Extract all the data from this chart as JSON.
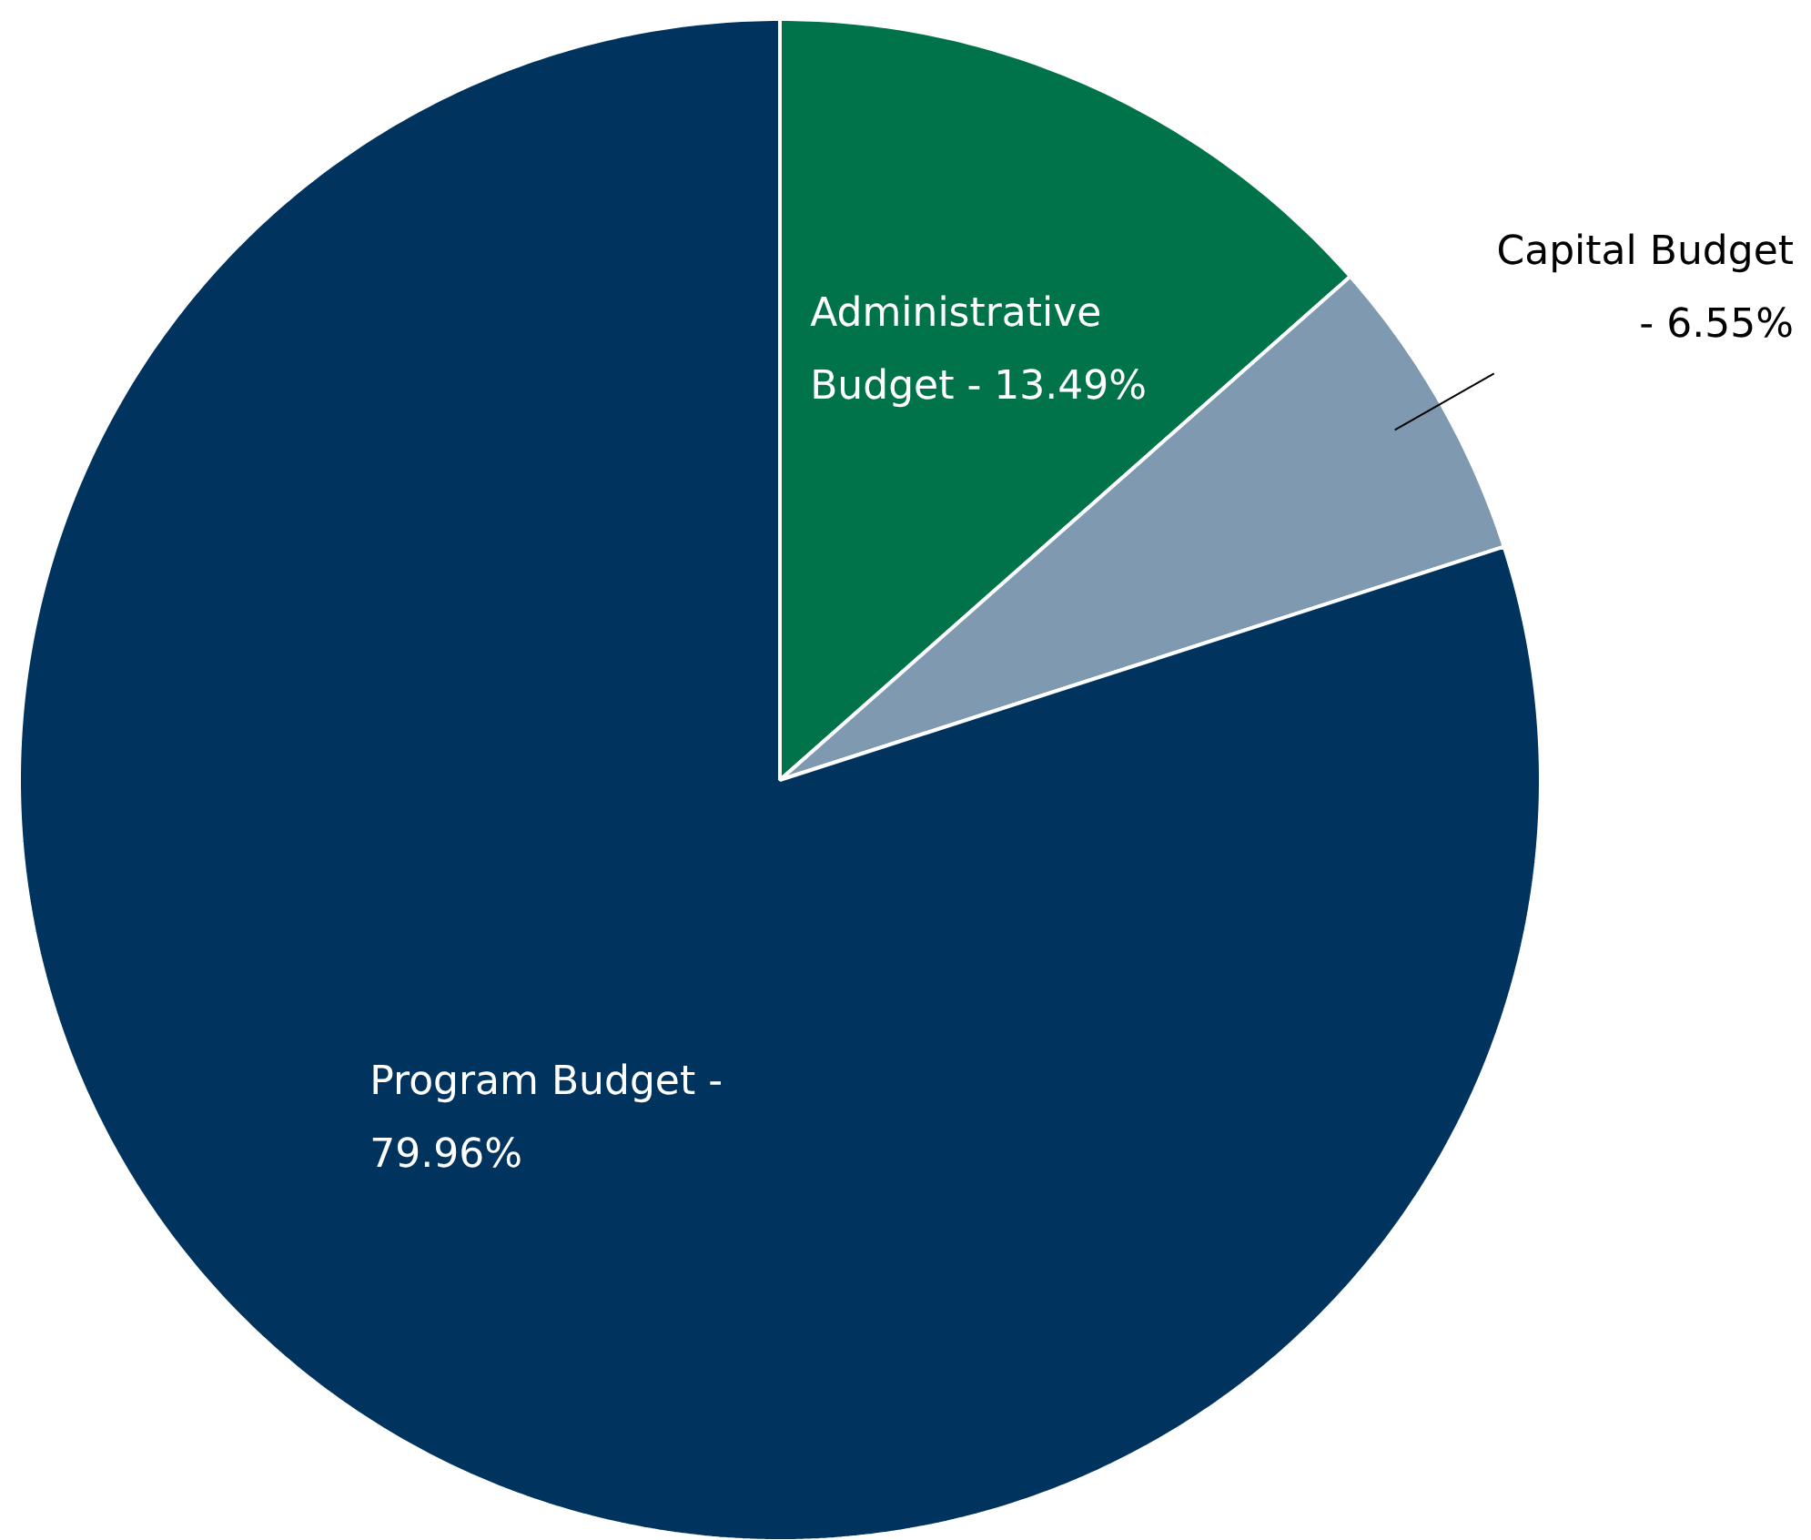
{
  "chart_data": {
    "type": "pie",
    "categories": [
      "Administrative Budget - 13.49%",
      "Capital Budget - 6.55%",
      "Program Budget - 79.96%"
    ],
    "values": [
      13.49,
      6.55,
      79.96
    ],
    "colors": [
      "#00734a",
      "#7f9ab0",
      "#00345e"
    ]
  }
}
